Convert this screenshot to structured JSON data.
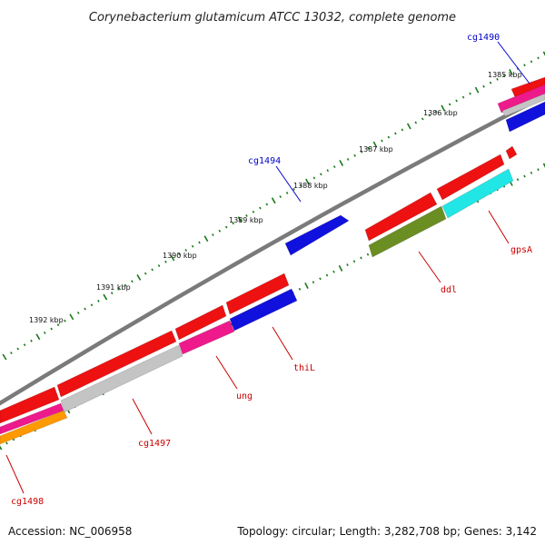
{
  "title": "Corynebacterium glutamicum ATCC 13032, complete genome",
  "footer": {
    "accession": "Accession: NC_006958",
    "summary": "Topology: circular; Length: 3,282,708 bp; Genes: 3,142"
  },
  "scale": {
    "labels": [
      "1385 kbp",
      "1386 kbp",
      "1387 kbp",
      "1388 kbp",
      "1389 kbp",
      "1390 kbp",
      "1391 kbp",
      "1392 kbp"
    ]
  },
  "genes": [
    {
      "name": "cg1490",
      "color": "#0000cc"
    },
    {
      "name": "cg1494",
      "color": "#0000cc"
    },
    {
      "name": "gpsA",
      "color": "#cc0000"
    },
    {
      "name": "ddl",
      "color": "#cc0000"
    },
    {
      "name": "thiL",
      "color": "#cc0000"
    },
    {
      "name": "ung",
      "color": "#cc0000"
    },
    {
      "name": "cg1497",
      "color": "#cc0000"
    },
    {
      "name": "cg1498",
      "color": "#cc0000"
    }
  ],
  "colors": {
    "backbone": "#7a7a7a",
    "ticks": "#1a7a1a",
    "red": "#ee1111",
    "blue": "#1111dd",
    "cyan": "#22e6e6",
    "olive": "#6b8e23",
    "pink": "#ee1a8c",
    "gray": "#c4c4c4",
    "orange": "#ff9900"
  }
}
